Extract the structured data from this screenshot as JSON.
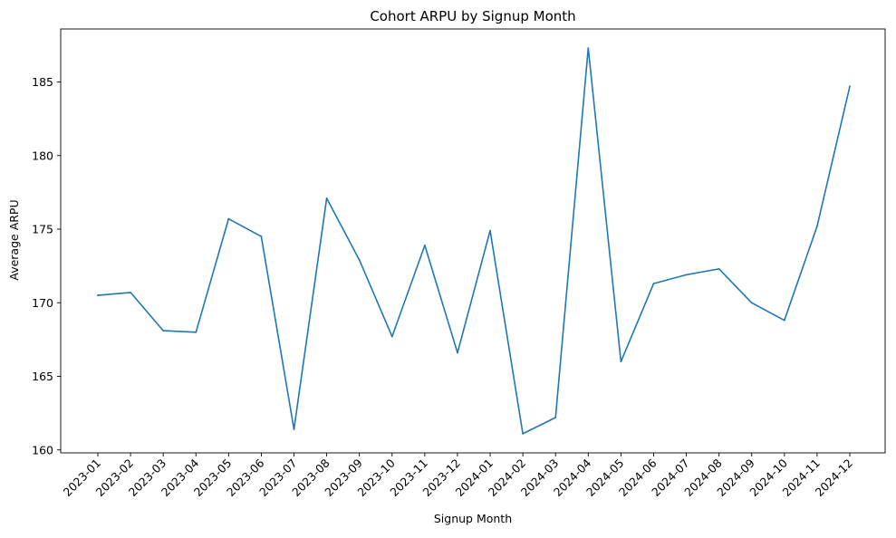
{
  "chart_data": {
    "type": "line",
    "title": "Cohort ARPU by Signup Month",
    "xlabel": "Signup Month",
    "ylabel": "Average ARPU",
    "categories": [
      "2023-01",
      "2023-02",
      "2023-03",
      "2023-04",
      "2023-05",
      "2023-06",
      "2023-07",
      "2023-08",
      "2023-09",
      "2023-10",
      "2023-11",
      "2023-12",
      "2024-01",
      "2024-02",
      "2024-03",
      "2024-04",
      "2024-05",
      "2024-06",
      "2024-07",
      "2024-08",
      "2024-09",
      "2024-10",
      "2024-11",
      "2024-12"
    ],
    "series": [
      {
        "values": [
          170.5,
          170.7,
          168.1,
          168.0,
          175.7,
          174.5,
          161.4,
          177.1,
          172.9,
          167.7,
          173.9,
          166.6,
          174.9,
          161.1,
          162.2,
          187.3,
          166.0,
          171.3,
          171.9,
          172.3,
          170.0,
          168.8,
          175.2,
          184.7
        ],
        "color": "#1f77b4"
      }
    ],
    "yticks": [
      160,
      165,
      170,
      175,
      180,
      185
    ],
    "ylim": [
      159.8,
      188.6
    ],
    "grid": false,
    "legend": "none"
  }
}
